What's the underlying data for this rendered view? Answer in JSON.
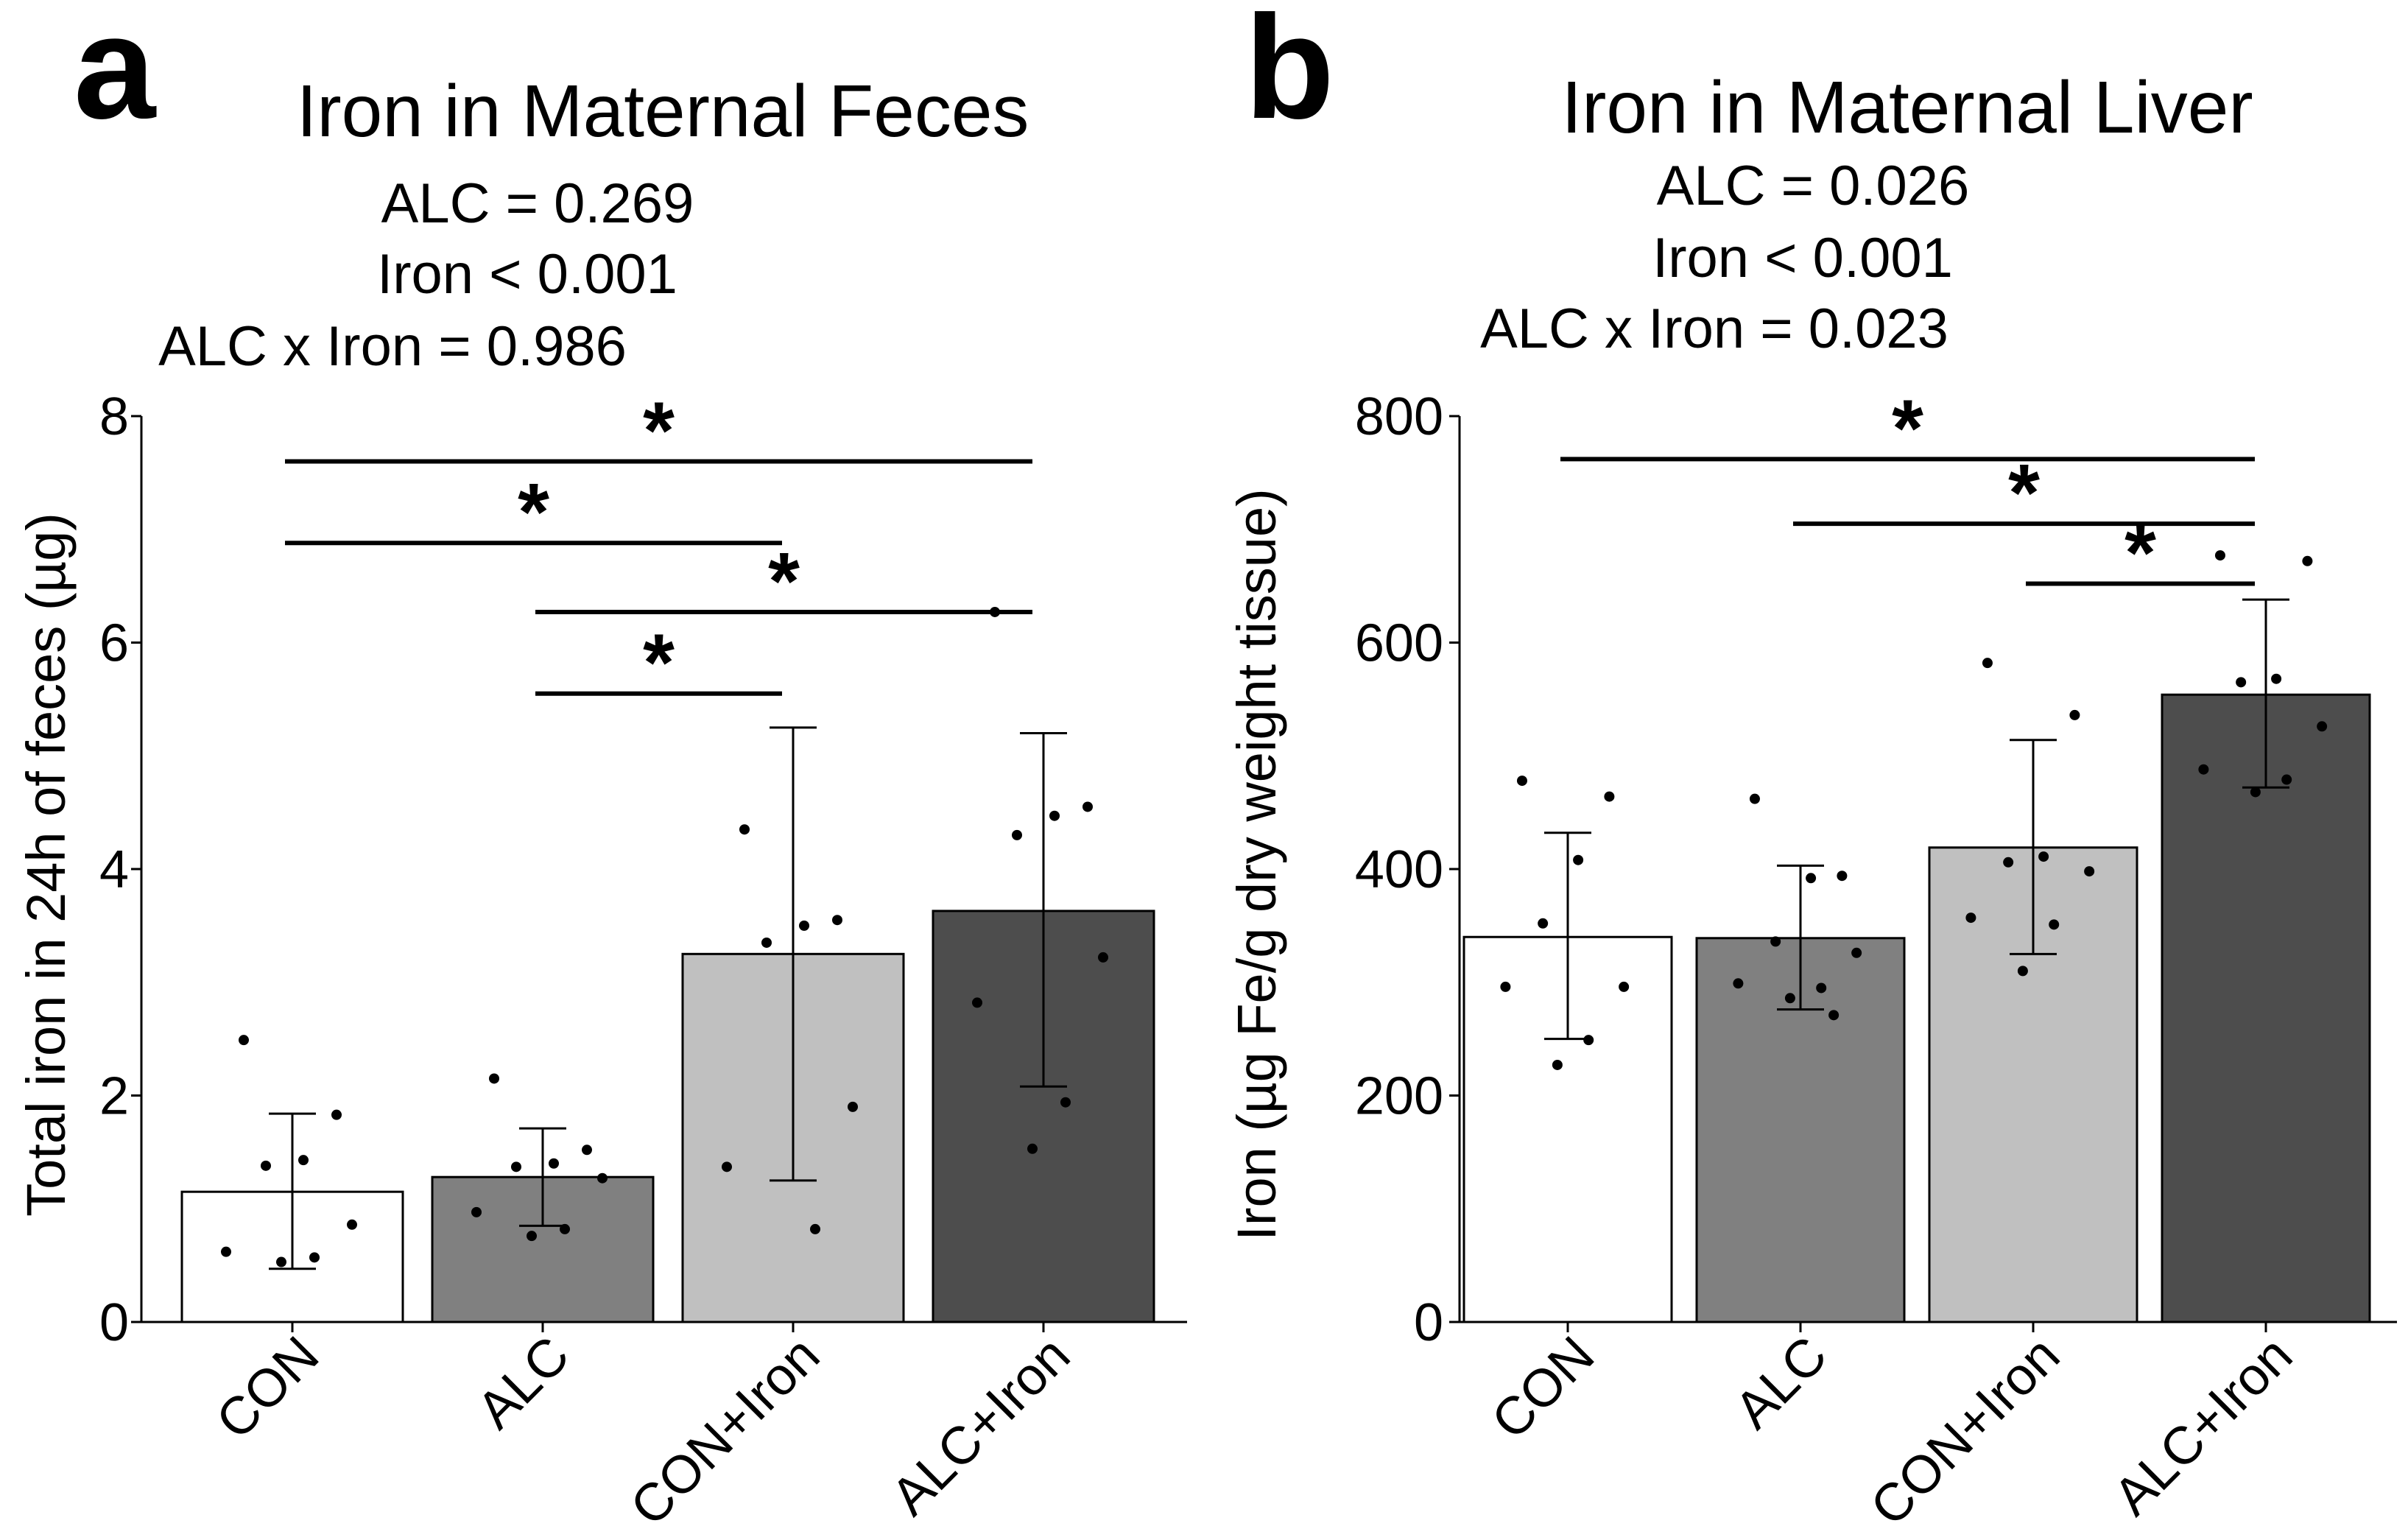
{
  "colors": {
    "CON": "#ffffff",
    "ALC": "#808080",
    "CON+Iron": "#c0c0c0",
    "ALC+Iron": "#4d4d4d",
    "axis": "#000000"
  },
  "chart_data": [
    {
      "type": "bar",
      "panel": "a",
      "title": "Iron in Maternal Feces",
      "stats": [
        "ALC = 0.269",
        "Iron < 0.001",
        "ALC x Iron = 0.986"
      ],
      "xlabel": "",
      "ylabel": "Total iron in 24h of feces (µg)",
      "ylim": [
        0,
        8
      ],
      "yticks": [
        0,
        2,
        4,
        6,
        8
      ],
      "categories": [
        "CON",
        "ALC",
        "CON+Iron",
        "ALC+Iron"
      ],
      "values": [
        1.15,
        1.28,
        3.25,
        3.63
      ],
      "error_low": [
        0.47,
        0.85,
        1.25,
        2.08
      ],
      "error_high": [
        1.84,
        1.71,
        5.25,
        5.2
      ],
      "points": [
        [
          2.49,
          1.83,
          1.43,
          1.38,
          0.86,
          0.62,
          0.57,
          0.53
        ],
        [
          2.15,
          1.52,
          1.4,
          1.37,
          1.27,
          0.97,
          0.82,
          0.76
        ],
        [
          4.35,
          3.55,
          3.5,
          3.35,
          1.9,
          1.37,
          0.82
        ],
        [
          6.27,
          4.55,
          4.47,
          4.3,
          3.22,
          2.82,
          1.94,
          1.53
        ]
      ],
      "significance": [
        {
          "from": 0,
          "to": 3,
          "label": "*",
          "y": 7.6
        },
        {
          "from": 0,
          "to": 2,
          "label": "*",
          "y": 6.88
        },
        {
          "from": 1,
          "to": 3,
          "label": "*",
          "y": 6.27
        },
        {
          "from": 1,
          "to": 2,
          "label": "*",
          "y": 5.55
        }
      ]
    },
    {
      "type": "bar",
      "panel": "b",
      "title": "Iron in Maternal Liver",
      "stats": [
        "ALC = 0.026",
        "Iron < 0.001",
        "ALC x Iron = 0.023"
      ],
      "xlabel": "",
      "ylabel": "Iron (µg Fe/g dry weight tissue)",
      "ylim": [
        0,
        800
      ],
      "yticks": [
        0,
        200,
        400,
        600,
        800
      ],
      "categories": [
        "CON",
        "ALC",
        "CON+Iron",
        "ALC+Iron"
      ],
      "values": [
        340,
        339,
        419,
        554
      ],
      "error_low": [
        250,
        276,
        325,
        472
      ],
      "error_high": [
        432,
        403,
        514,
        638
      ],
      "points": [
        [
          478,
          464,
          408,
          352,
          296,
          296,
          249,
          227
        ],
        [
          462,
          394,
          392,
          336,
          326,
          299,
          295,
          286,
          271
        ],
        [
          582,
          536,
          411,
          406,
          398,
          357,
          351,
          310
        ],
        [
          677,
          672,
          568,
          565,
          526,
          488,
          479,
          468
        ]
      ],
      "significance": [
        {
          "from": 0,
          "to": 3,
          "label": "*",
          "y": 762
        },
        {
          "from": 1,
          "to": 3,
          "label": "*",
          "y": 705
        },
        {
          "from": 2,
          "to": 3,
          "label": "*",
          "y": 652
        }
      ]
    }
  ]
}
